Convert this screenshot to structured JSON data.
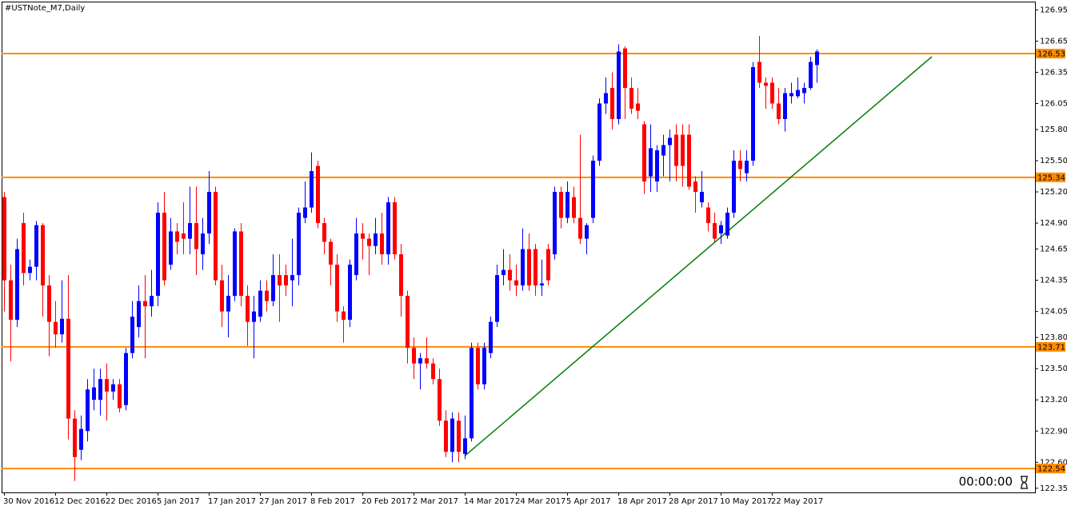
{
  "chart_data": {
    "type": "candlestick",
    "title": "#USTNote_M7,Daily",
    "timer": "00:00:00",
    "up_color": "#0000ff",
    "down_color": "#ff0000",
    "level_color": "#ff8c00",
    "categories": [
      "30 Nov 2016",
      null,
      null,
      null,
      null,
      null,
      null,
      null,
      "12 Dec 2016",
      null,
      null,
      null,
      null,
      null,
      null,
      null,
      "22 Dec 2016",
      null,
      null,
      null,
      null,
      null,
      null,
      null,
      "5 Jan 2017",
      null,
      null,
      null,
      null,
      null,
      null,
      null,
      "17 Jan 2017",
      null,
      null,
      null,
      null,
      null,
      null,
      null,
      "27 Jan 2017",
      null,
      null,
      null,
      null,
      null,
      null,
      null,
      "8 Feb 2017",
      null,
      null,
      null,
      null,
      null,
      null,
      null,
      "20 Feb 2017",
      null,
      null,
      null,
      null,
      null,
      null,
      null,
      "2 Mar 2017",
      null,
      null,
      null,
      null,
      null,
      null,
      null,
      "14 Mar 2017",
      null,
      null,
      null,
      null,
      null,
      null,
      null,
      "24 Mar 2017",
      null,
      null,
      null,
      null,
      null,
      null,
      null,
      "5 Apr 2017",
      null,
      null,
      null,
      null,
      null,
      null,
      null,
      "18 Apr 2017",
      null,
      null,
      null,
      null,
      null,
      null,
      null,
      "28 Apr 2017",
      null,
      null,
      null,
      null,
      null,
      null,
      null,
      "10 May 2017",
      null,
      null,
      null,
      null,
      null,
      null,
      null,
      "22 May 2017",
      null,
      null,
      null,
      null,
      null,
      null,
      null
    ],
    "open": [
      125.15,
      124.35,
      123.97,
      124.9,
      124.42,
      124.48,
      124.88,
      124.3,
      123.95,
      123.83,
      123.98,
      123.02,
      122.72,
      122.9,
      123.2,
      123.2,
      123.4,
      123.28,
      123.35,
      123.15,
      123.65,
      123.9,
      124.15,
      124.1,
      124.2,
      125.0,
      124.5,
      124.82,
      124.8,
      124.75,
      124.9,
      124.6,
      124.8,
      125.2,
      124.35,
      124.05,
      124.2,
      124.82,
      124.2,
      123.95,
      124.0,
      124.25,
      124.15,
      124.4,
      124.4,
      124.35,
      124.4,
      124.95,
      125.05,
      125.45,
      124.9,
      124.72,
      124.5,
      124.05,
      123.97,
      124.4,
      124.8,
      124.75,
      124.68,
      124.8,
      124.6,
      125.1,
      124.6,
      124.2,
      123.7,
      123.55,
      123.6,
      123.55,
      123.4,
      123.0,
      122.7,
      123.0,
      122.68,
      122.83,
      123.7,
      123.35,
      123.65,
      123.95,
      124.4,
      124.45,
      124.35,
      124.3,
      124.65,
      124.65,
      124.3,
      124.65,
      124.6,
      125.2,
      124.95,
      125.15,
      124.95,
      124.75,
      124.95,
      125.5,
      126.05,
      126.2,
      125.9,
      126.58,
      126.2,
      126.05,
      125.85,
      125.35,
      125.3,
      125.55,
      125.65,
      125.75,
      125.75,
      125.75,
      125.3,
      125.1,
      125.05,
      124.9,
      124.8,
      124.78,
      125.0,
      125.5,
      125.38,
      125.5,
      126.45,
      126.25,
      126.25,
      126.05,
      125.9,
      126.12,
      126.12,
      126.15,
      126.2,
      126.42
    ],
    "high": [
      125.2,
      124.5,
      124.75,
      125.0,
      124.55,
      124.92,
      124.9,
      124.4,
      124.15,
      124.35,
      124.4,
      123.1,
      123.05,
      123.4,
      123.5,
      123.5,
      123.55,
      123.4,
      123.4,
      123.7,
      124.15,
      124.3,
      124.4,
      124.45,
      125.1,
      125.2,
      124.95,
      124.9,
      125.1,
      125.25,
      125.25,
      124.95,
      125.4,
      125.25,
      124.5,
      124.4,
      124.85,
      124.9,
      124.3,
      124.2,
      124.35,
      124.35,
      124.6,
      124.6,
      124.5,
      124.75,
      125.05,
      125.3,
      125.58,
      125.5,
      124.95,
      124.75,
      124.6,
      124.1,
      124.55,
      124.95,
      124.9,
      124.8,
      124.95,
      125.0,
      125.15,
      125.15,
      124.7,
      124.25,
      123.8,
      123.65,
      123.8,
      123.6,
      123.5,
      123.1,
      123.08,
      123.08,
      123.05,
      123.75,
      123.75,
      123.75,
      124.0,
      124.5,
      124.65,
      124.6,
      124.5,
      124.85,
      124.8,
      124.7,
      124.55,
      124.7,
      125.25,
      125.25,
      125.3,
      125.25,
      125.75,
      124.9,
      125.55,
      126.1,
      126.3,
      126.35,
      126.62,
      126.6,
      126.3,
      126.2,
      125.88,
      125.85,
      125.65,
      125.75,
      125.8,
      125.85,
      125.85,
      125.85,
      125.35,
      125.4,
      125.1,
      125.0,
      124.92,
      125.05,
      125.6,
      125.6,
      125.6,
      126.45,
      126.7,
      126.3,
      126.3,
      126.2,
      126.2,
      126.25,
      126.3,
      126.25,
      126.5,
      126.57
    ],
    "low": [
      124.05,
      123.57,
      123.9,
      124.3,
      124.35,
      124.35,
      124.0,
      123.62,
      123.7,
      123.75,
      122.82,
      122.42,
      122.62,
      122.8,
      123.1,
      123.05,
      123.0,
      123.2,
      123.08,
      123.1,
      123.6,
      123.8,
      123.6,
      124.0,
      124.1,
      124.3,
      124.45,
      124.6,
      124.6,
      124.6,
      124.4,
      124.45,
      124.7,
      124.3,
      123.9,
      123.8,
      124.15,
      124.1,
      123.72,
      123.6,
      123.95,
      124.05,
      124.1,
      123.95,
      124.2,
      124.1,
      124.3,
      124.9,
      125.0,
      124.85,
      124.6,
      124.3,
      123.95,
      123.75,
      123.9,
      124.35,
      124.55,
      124.4,
      124.6,
      124.5,
      124.5,
      124.55,
      124.0,
      123.55,
      123.4,
      123.3,
      123.5,
      123.35,
      122.95,
      122.65,
      122.6,
      122.6,
      122.63,
      122.8,
      123.3,
      123.3,
      123.6,
      123.9,
      124.3,
      124.25,
      124.2,
      124.25,
      124.25,
      124.2,
      124.2,
      124.3,
      124.55,
      124.85,
      124.9,
      124.9,
      124.7,
      124.6,
      124.9,
      125.45,
      125.95,
      125.8,
      125.85,
      125.9,
      125.95,
      125.9,
      125.18,
      125.2,
      125.2,
      125.35,
      125.3,
      125.3,
      125.25,
      125.22,
      125.0,
      125.05,
      124.82,
      124.72,
      124.7,
      124.75,
      124.95,
      125.3,
      125.3,
      125.45,
      126.2,
      126.0,
      126.0,
      125.85,
      125.78,
      126.05,
      126.1,
      126.05,
      126.18,
      126.25
    ],
    "close": [
      124.35,
      123.97,
      124.65,
      124.42,
      124.48,
      124.88,
      124.3,
      123.95,
      123.83,
      123.98,
      123.02,
      122.65,
      122.92,
      123.3,
      123.32,
      123.4,
      123.28,
      123.35,
      123.12,
      123.65,
      124.0,
      124.15,
      124.1,
      124.2,
      125.0,
      124.35,
      124.82,
      124.72,
      124.75,
      124.9,
      124.65,
      124.8,
      125.2,
      124.35,
      124.05,
      124.2,
      124.82,
      124.2,
      123.95,
      124.05,
      124.25,
      124.15,
      124.4,
      124.3,
      124.3,
      124.4,
      125.0,
      125.05,
      125.4,
      124.9,
      124.72,
      124.5,
      124.05,
      123.97,
      124.5,
      124.8,
      124.75,
      124.68,
      124.8,
      124.6,
      125.1,
      124.6,
      124.2,
      123.7,
      123.55,
      123.6,
      123.55,
      123.4,
      123.0,
      122.7,
      123.02,
      122.7,
      122.83,
      123.7,
      123.35,
      123.7,
      123.95,
      124.4,
      124.45,
      124.35,
      124.3,
      124.65,
      124.3,
      124.3,
      124.32,
      124.35,
      125.2,
      124.95,
      125.2,
      124.95,
      124.75,
      124.88,
      125.5,
      126.05,
      126.15,
      125.9,
      126.55,
      126.2,
      126.0,
      125.98,
      125.3,
      125.62,
      125.6,
      125.65,
      125.72,
      125.45,
      125.45,
      125.25,
      125.2,
      125.2,
      124.9,
      124.75,
      124.88,
      125.0,
      125.5,
      125.42,
      125.5,
      126.4,
      126.25,
      126.22,
      126.05,
      125.9,
      126.15,
      126.15,
      126.18,
      126.2,
      126.45,
      126.55
    ],
    "levels": [
      126.53,
      125.34,
      123.71,
      122.54
    ],
    "trendline": {
      "x": [
        72,
        145
      ],
      "y": [
        122.66,
        126.5
      ],
      "color": "#008000"
    },
    "ylim": [
      122.31,
      127.03
    ],
    "yticks": [
      126.95,
      126.65,
      126.35,
      126.05,
      {
        "value": 125.8,
        "label": "125.80"
      },
      {
        "value": 125.5,
        "label": "125.50"
      },
      {
        "value": 125.2,
        "label": "125.20"
      },
      {
        "value": 124.9,
        "label": "124.90"
      },
      124.65,
      124.35,
      124.05,
      {
        "value": 123.8,
        "label": "123.80"
      },
      {
        "value": 123.5,
        "label": "123.50"
      },
      {
        "value": 123.2,
        "label": "123.20"
      },
      {
        "value": 122.9,
        "label": "122.90"
      },
      {
        "value": 122.6,
        "label": "122.60"
      },
      122.35
    ]
  }
}
